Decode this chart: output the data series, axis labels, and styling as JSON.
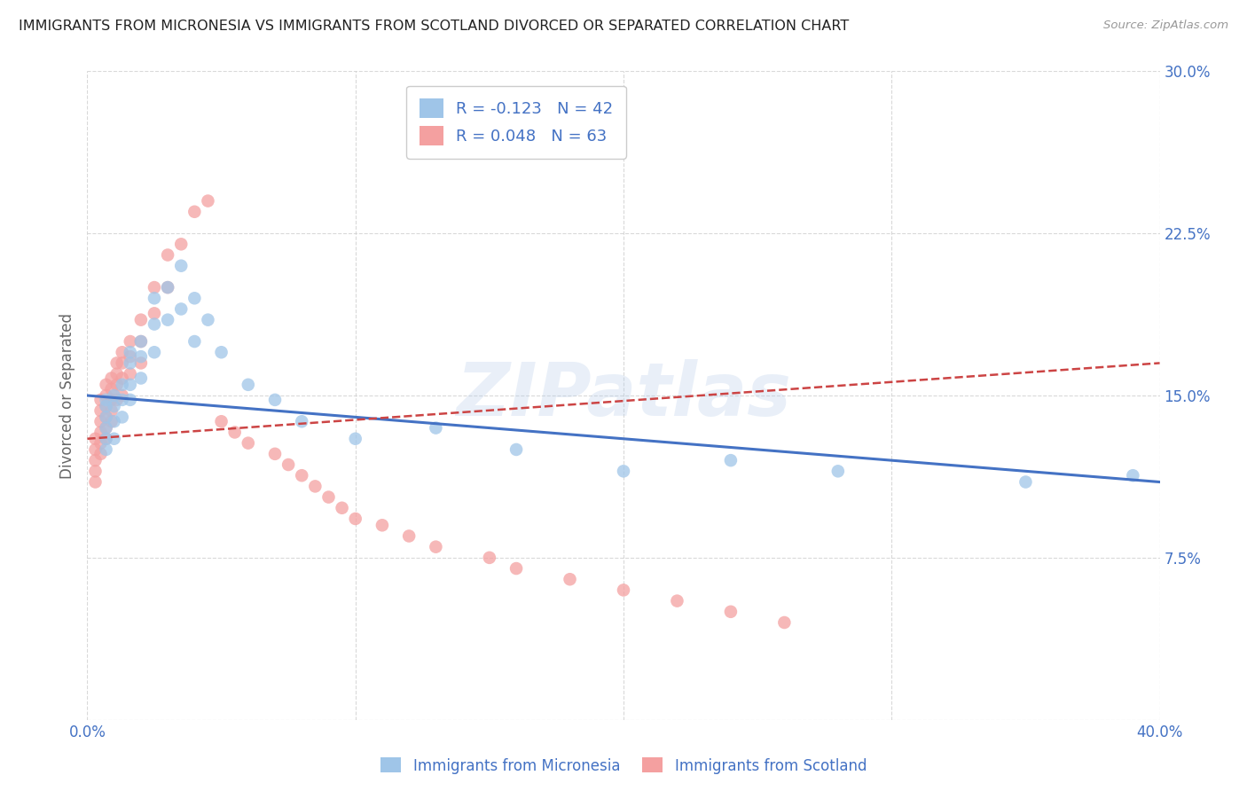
{
  "title": "IMMIGRANTS FROM MICRONESIA VS IMMIGRANTS FROM SCOTLAND DIVORCED OR SEPARATED CORRELATION CHART",
  "source_text": "Source: ZipAtlas.com",
  "ylabel": "Divorced or Separated",
  "legend_label1": "Immigrants from Micronesia",
  "legend_label2": "Immigrants from Scotland",
  "R1": -0.123,
  "N1": 42,
  "R2": 0.048,
  "N2": 63,
  "color1": "#9fc5e8",
  "color2": "#f4a0a0",
  "color1_line": "#4472c4",
  "color2_line": "#cc4444",
  "xlim": [
    0.0,
    0.4
  ],
  "ylim": [
    0.0,
    0.3
  ],
  "xticks": [
    0.0,
    0.1,
    0.2,
    0.3,
    0.4
  ],
  "yticks": [
    0.0,
    0.075,
    0.15,
    0.225,
    0.3
  ],
  "background_color": "#ffffff",
  "watermark": "ZIPatlas",
  "blue_scatter_x": [
    0.007,
    0.007,
    0.007,
    0.007,
    0.007,
    0.007,
    0.01,
    0.01,
    0.01,
    0.01,
    0.013,
    0.013,
    0.013,
    0.016,
    0.016,
    0.016,
    0.016,
    0.02,
    0.02,
    0.02,
    0.025,
    0.025,
    0.025,
    0.03,
    0.03,
    0.035,
    0.035,
    0.04,
    0.04,
    0.045,
    0.05,
    0.06,
    0.07,
    0.08,
    0.1,
    0.13,
    0.16,
    0.2,
    0.24,
    0.28,
    0.35,
    0.39
  ],
  "blue_scatter_y": [
    0.148,
    0.145,
    0.14,
    0.135,
    0.13,
    0.125,
    0.15,
    0.145,
    0.138,
    0.13,
    0.155,
    0.148,
    0.14,
    0.17,
    0.165,
    0.155,
    0.148,
    0.175,
    0.168,
    0.158,
    0.195,
    0.183,
    0.17,
    0.2,
    0.185,
    0.21,
    0.19,
    0.195,
    0.175,
    0.185,
    0.17,
    0.155,
    0.148,
    0.138,
    0.13,
    0.135,
    0.125,
    0.115,
    0.12,
    0.115,
    0.11,
    0.113
  ],
  "pink_scatter_x": [
    0.003,
    0.003,
    0.003,
    0.003,
    0.003,
    0.005,
    0.005,
    0.005,
    0.005,
    0.005,
    0.005,
    0.007,
    0.007,
    0.007,
    0.007,
    0.007,
    0.007,
    0.009,
    0.009,
    0.009,
    0.009,
    0.009,
    0.011,
    0.011,
    0.011,
    0.011,
    0.013,
    0.013,
    0.013,
    0.013,
    0.016,
    0.016,
    0.016,
    0.02,
    0.02,
    0.02,
    0.025,
    0.025,
    0.03,
    0.03,
    0.035,
    0.04,
    0.045,
    0.05,
    0.055,
    0.06,
    0.07,
    0.075,
    0.08,
    0.085,
    0.09,
    0.095,
    0.1,
    0.11,
    0.12,
    0.13,
    0.15,
    0.16,
    0.18,
    0.2,
    0.22,
    0.24,
    0.26
  ],
  "pink_scatter_y": [
    0.13,
    0.125,
    0.12,
    0.115,
    0.11,
    0.148,
    0.143,
    0.138,
    0.133,
    0.128,
    0.123,
    0.155,
    0.15,
    0.145,
    0.14,
    0.135,
    0.13,
    0.158,
    0.153,
    0.148,
    0.143,
    0.138,
    0.165,
    0.16,
    0.155,
    0.148,
    0.17,
    0.165,
    0.158,
    0.15,
    0.175,
    0.168,
    0.16,
    0.185,
    0.175,
    0.165,
    0.2,
    0.188,
    0.215,
    0.2,
    0.22,
    0.235,
    0.24,
    0.138,
    0.133,
    0.128,
    0.123,
    0.118,
    0.113,
    0.108,
    0.103,
    0.098,
    0.093,
    0.09,
    0.085,
    0.08,
    0.075,
    0.07,
    0.065,
    0.06,
    0.055,
    0.05,
    0.045
  ]
}
